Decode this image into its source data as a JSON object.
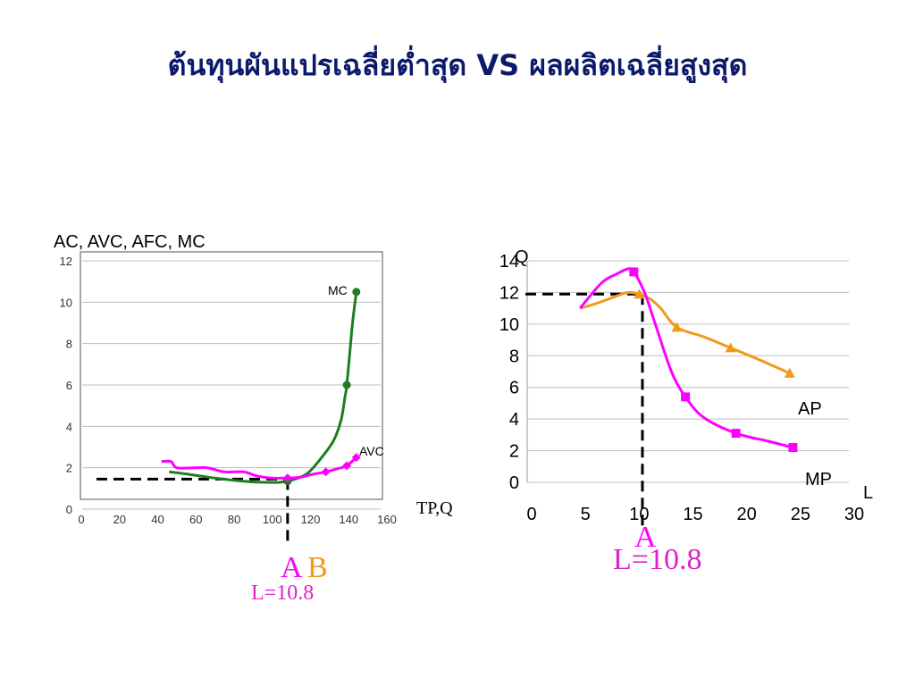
{
  "title": "ต้นทุนผันแปรเฉลี่ยต่ำสุด VS ผลผลิตเฉลี่ยสูงสุด",
  "colors": {
    "title": "#0b1a6b",
    "mc": "#1e7d1e",
    "avc": "#ff00ff",
    "ap": "#f09a1a",
    "mp": "#ff00ff",
    "marker_a": "#ff00ff",
    "marker_b": "#f09a1a"
  },
  "chart_data": [
    {
      "type": "line",
      "ylabel": "AC, AVC, AFC, MC",
      "xlabel": "TP,Q",
      "xlim": [
        0,
        160
      ],
      "ylim": [
        0,
        12
      ],
      "xticks": [
        "0",
        "20",
        "40",
        "60",
        "80",
        "100",
        "120",
        "140",
        "160"
      ],
      "yticks": [
        "0",
        "2",
        "4",
        "6",
        "8",
        "10",
        "12"
      ],
      "series": [
        {
          "name": "MC",
          "marker": "circle",
          "points": [
            [
              46,
              1.8
            ],
            [
              55,
              1.7
            ],
            [
              70,
              1.5
            ],
            [
              85,
              1.35
            ],
            [
              95,
              1.3
            ],
            [
              104,
              1.3
            ],
            [
              110,
              1.4
            ],
            [
              118,
              1.7
            ],
            [
              125,
              2.4
            ],
            [
              132,
              3.3
            ],
            [
              136,
              4.3
            ],
            [
              138,
              5.4
            ],
            [
              139,
              6.0
            ],
            [
              141,
              8.0
            ],
            [
              142,
              9.0
            ],
            [
              144,
              10.5
            ]
          ],
          "markers": [
            [
              108,
              1.35
            ],
            [
              139,
              6.0
            ],
            [
              144,
              10.5
            ]
          ]
        },
        {
          "name": "AVC",
          "marker": "diamond",
          "points": [
            [
              42,
              2.3
            ],
            [
              47,
              2.3
            ],
            [
              50,
              2.0
            ],
            [
              60,
              2.0
            ],
            [
              66,
              2.0
            ],
            [
              75,
              1.8
            ],
            [
              85,
              1.8
            ],
            [
              92,
              1.6
            ],
            [
              100,
              1.5
            ],
            [
              105,
              1.5
            ],
            [
              108,
              1.5
            ],
            [
              115,
              1.55
            ],
            [
              122,
              1.7
            ],
            [
              128,
              1.8
            ],
            [
              134,
              1.95
            ],
            [
              139,
              2.1
            ],
            [
              144,
              2.5
            ]
          ],
          "markers": [
            [
              108,
              1.5
            ],
            [
              128,
              1.8
            ],
            [
              139,
              2.1
            ],
            [
              144,
              2.5
            ]
          ]
        }
      ],
      "reference": {
        "y": 1.45,
        "x": 108
      },
      "point_labels": [
        "A",
        "B"
      ],
      "annotation": "L=10.8"
    },
    {
      "type": "line",
      "ylabel": "Q",
      "xlabel": "L",
      "xlim": [
        0,
        30
      ],
      "ylim": [
        0,
        14
      ],
      "xticks": [
        "0",
        "5",
        "10",
        "15",
        "20",
        "25",
        "30"
      ],
      "yticks": [
        "0",
        "2",
        "4",
        "6",
        "8",
        "10",
        "12",
        "14"
      ],
      "series": [
        {
          "name": "AP",
          "marker": "triangle",
          "points": [
            [
              4.5,
              11
            ],
            [
              6,
              11.3
            ],
            [
              8,
              11.8
            ],
            [
              9,
              12
            ],
            [
              10,
              11.9
            ],
            [
              11,
              11.6
            ],
            [
              12,
              11
            ],
            [
              13.5,
              9.8
            ],
            [
              16,
              9.2
            ],
            [
              18.5,
              8.5
            ],
            [
              21,
              7.8
            ],
            [
              24,
              6.9
            ]
          ],
          "markers": [
            [
              10,
              11.9
            ],
            [
              13.5,
              9.8
            ],
            [
              18.5,
              8.5
            ],
            [
              24,
              6.9
            ]
          ]
        },
        {
          "name": "MP",
          "marker": "square",
          "points": [
            [
              4.5,
              11
            ],
            [
              6.5,
              12.6
            ],
            [
              8,
              13.2
            ],
            [
              9,
              13.5
            ],
            [
              9.5,
              13.3
            ],
            [
              10.5,
              12
            ],
            [
              11.5,
              10
            ],
            [
              13,
              7
            ],
            [
              14.3,
              5.4
            ],
            [
              16,
              4.1
            ],
            [
              19,
              3.1
            ],
            [
              22,
              2.6
            ],
            [
              24.3,
              2.2
            ]
          ],
          "markers": [
            [
              9.5,
              13.3
            ],
            [
              14.3,
              5.4
            ],
            [
              19,
              3.1
            ],
            [
              24.3,
              2.2
            ]
          ]
        }
      ],
      "reference": {
        "y": 11.9,
        "x": 10.3
      },
      "point_label": "A",
      "annotation": "L=10.8"
    }
  ]
}
